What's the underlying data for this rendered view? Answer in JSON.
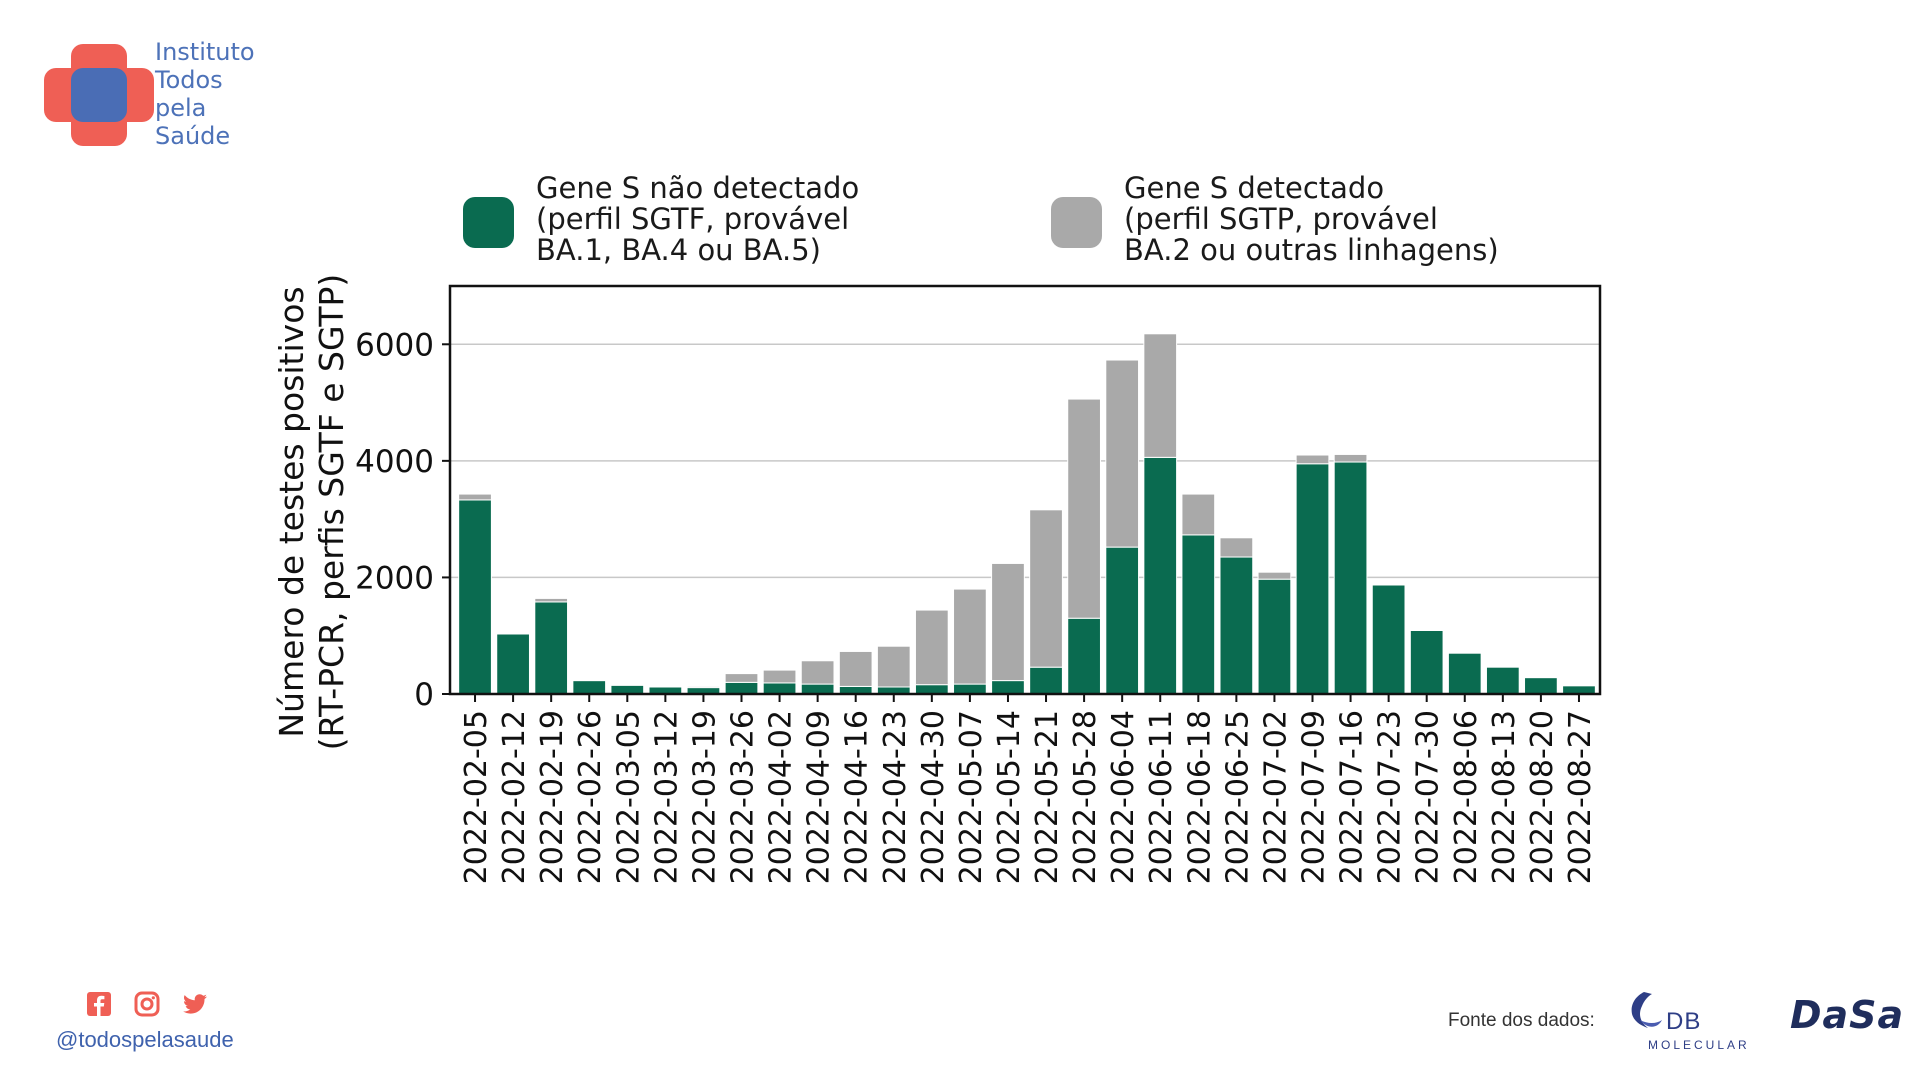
{
  "logo": {
    "lines": [
      "Instituto",
      "Todos",
      "pela",
      "Saúde"
    ],
    "colors": {
      "cross": "#ef5f55",
      "center": "#4a6db5"
    }
  },
  "legend": [
    {
      "label_lines": [
        "Gene S não detectado",
        "(perfil SGTF, provável",
        "BA.1, BA.4 ou BA.5)"
      ],
      "color": "#0a6b50"
    },
    {
      "label_lines": [
        "Gene S detectado",
        "(perfil SGTP, provável",
        "BA.2 ou outras linhagens)"
      ],
      "color": "#a9a9a9"
    }
  ],
  "chart_data": {
    "type": "bar",
    "stacked": true,
    "ylabel_lines": [
      "Número de testes positivos",
      "(RT-PCR, perfis SGTF e SGTP)"
    ],
    "xlabel": "",
    "ylim": [
      0,
      7000
    ],
    "yticks": [
      0,
      2000,
      4000,
      6000
    ],
    "grid": true,
    "legend_position": "top",
    "categories": [
      "2022-02-05",
      "2022-02-12",
      "2022-02-19",
      "2022-02-26",
      "2022-03-05",
      "2022-03-12",
      "2022-03-19",
      "2022-03-26",
      "2022-04-02",
      "2022-04-09",
      "2022-04-16",
      "2022-04-23",
      "2022-04-30",
      "2022-05-07",
      "2022-05-14",
      "2022-05-21",
      "2022-05-28",
      "2022-06-04",
      "2022-06-11",
      "2022-06-18",
      "2022-06-25",
      "2022-07-02",
      "2022-07-09",
      "2022-07-16",
      "2022-07-23",
      "2022-07-30",
      "2022-08-06",
      "2022-08-13",
      "2022-08-20",
      "2022-08-27"
    ],
    "series": [
      {
        "name": "Gene S não detectado (perfil SGTF, provável BA.1, BA.4 ou BA.5)",
        "color": "#0a6b50",
        "values": [
          3330,
          1030,
          1580,
          230,
          150,
          120,
          110,
          200,
          190,
          170,
          130,
          120,
          160,
          170,
          230,
          460,
          1300,
          2520,
          4060,
          2730,
          2350,
          1970,
          3950,
          3980,
          1870,
          1090,
          700,
          460,
          280,
          140
        ]
      },
      {
        "name": "Gene S detectado (perfil SGTP, provável BA.2 ou outras linhagens)",
        "color": "#a9a9a9",
        "values": [
          100,
          10,
          60,
          10,
          10,
          10,
          20,
          150,
          220,
          400,
          600,
          700,
          1280,
          1630,
          2010,
          2700,
          3760,
          3210,
          2120,
          700,
          330,
          120,
          150,
          130,
          10,
          10,
          0,
          0,
          0,
          0
        ]
      }
    ]
  },
  "social": {
    "icons": [
      "facebook-icon",
      "instagram-icon",
      "twitter-icon"
    ],
    "handle": "@todospelasaude",
    "color": "#ef5f55"
  },
  "source": {
    "label": "Fonte dos dados:",
    "db_name": "DB",
    "db_sub": "MOLECULAR",
    "dasa": "DaSa"
  }
}
